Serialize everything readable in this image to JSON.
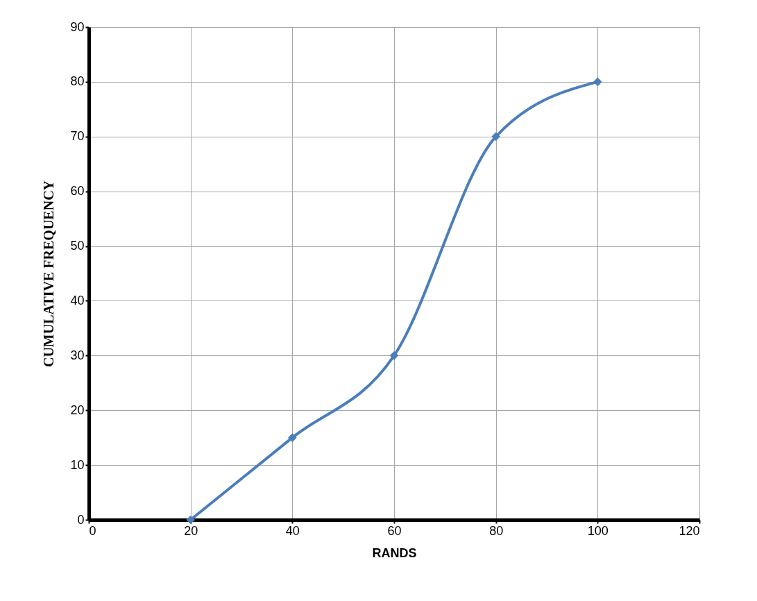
{
  "chart_data": {
    "type": "line",
    "xlabel": "RANDS",
    "ylabel": "CUMULATIVE FREQUENCY",
    "x": [
      20,
      40,
      60,
      80,
      100
    ],
    "series": [
      {
        "color": "#4a7ebb",
        "values": [
          0,
          15,
          30,
          70,
          80
        ]
      }
    ],
    "xlim": [
      0,
      120
    ],
    "xticks": [
      0,
      20,
      40,
      60,
      80,
      100,
      120
    ],
    "ylim": [
      0,
      90
    ],
    "yticks": [
      0,
      10,
      20,
      30,
      40,
      50,
      60,
      70,
      80,
      90
    ],
    "grid": true,
    "marker": "diamond",
    "line_style": "solid"
  }
}
